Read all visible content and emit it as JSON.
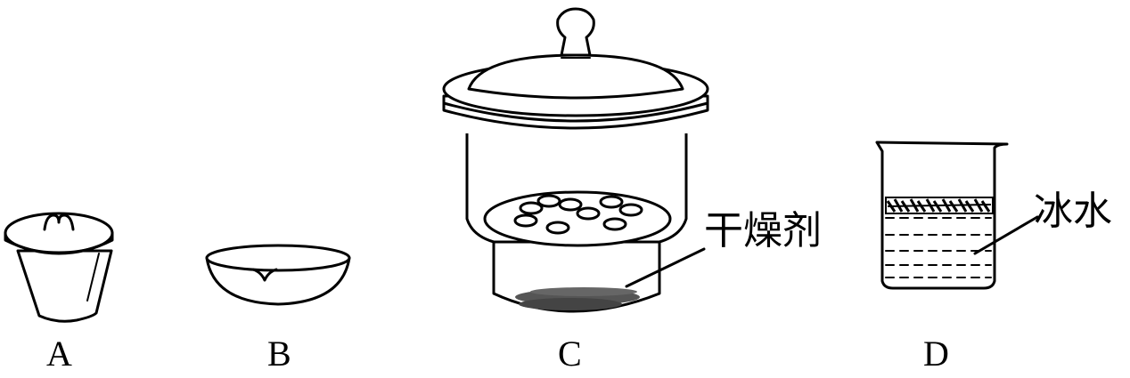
{
  "figure": {
    "labels": {
      "a": "A",
      "b": "B",
      "c": "C",
      "d": "D"
    },
    "annotations": {
      "desiccant": "干燥剂",
      "ice_water": "冰水"
    }
  }
}
